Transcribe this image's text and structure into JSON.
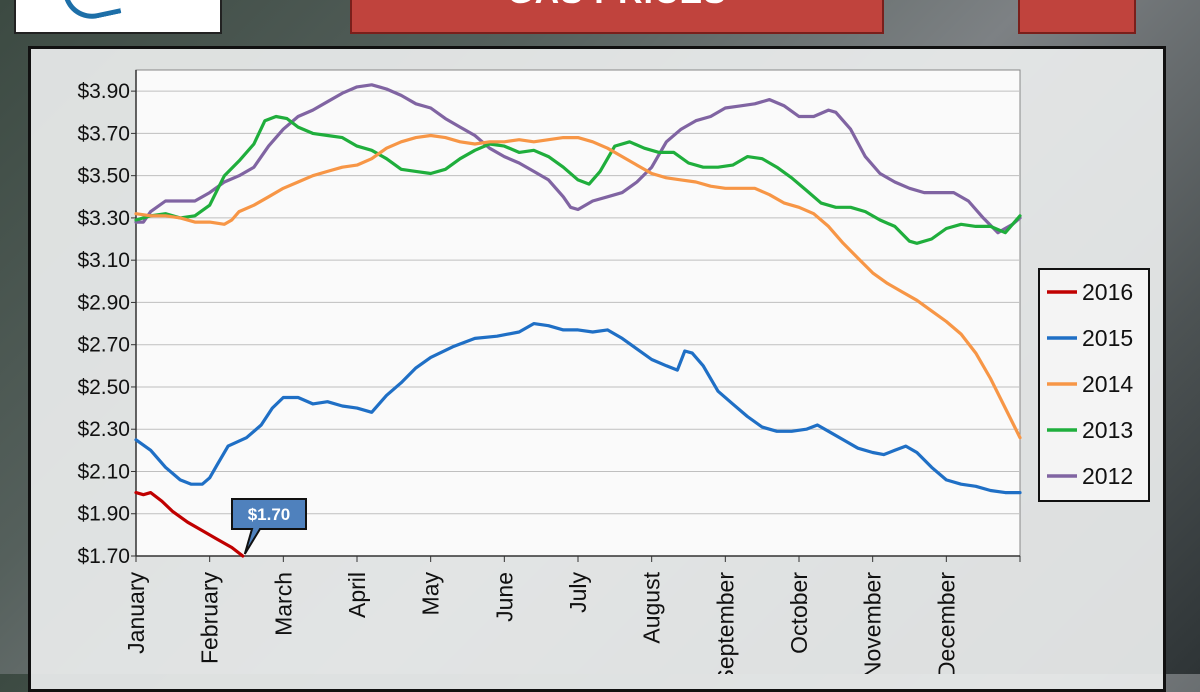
{
  "header": {
    "title": "GAS PRICES",
    "logo": "logo-swoosh",
    "corner_icon": "minus-icon"
  },
  "chart_data": {
    "type": "line",
    "title": "GAS PRICES",
    "xlabel": "",
    "ylabel": "",
    "x": [
      "January",
      "February",
      "March",
      "April",
      "May",
      "June",
      "July",
      "August",
      "September",
      "October",
      "November",
      "December"
    ],
    "x_tick_labels": [
      "January",
      "February",
      "March",
      "April",
      "May",
      "June",
      "July",
      "August",
      "September",
      "October",
      "November",
      "December"
    ],
    "y_tick_labels": [
      "$1.70",
      "$1.90",
      "$2.10",
      "$2.30",
      "$2.50",
      "$2.70",
      "$2.90",
      "$3.10",
      "$3.30",
      "$3.50",
      "$3.70",
      "$3.90"
    ],
    "ylim": [
      1.7,
      4.0
    ],
    "grid": true,
    "legend_position": "right",
    "annotation": {
      "text": "$1.70",
      "series": "2016",
      "x": 1.45,
      "y": 1.7
    },
    "series": [
      {
        "name": "2016",
        "color": "#c00000",
        "points": [
          [
            0,
            2.0
          ],
          [
            0.1,
            1.99
          ],
          [
            0.2,
            2.0
          ],
          [
            0.35,
            1.96
          ],
          [
            0.5,
            1.91
          ],
          [
            0.7,
            1.86
          ],
          [
            0.9,
            1.82
          ],
          [
            1.1,
            1.78
          ],
          [
            1.3,
            1.74
          ],
          [
            1.45,
            1.7
          ]
        ]
      },
      {
        "name": "2015",
        "color": "#1f6fc5",
        "points": [
          [
            0,
            2.25
          ],
          [
            0.2,
            2.2
          ],
          [
            0.4,
            2.12
          ],
          [
            0.6,
            2.06
          ],
          [
            0.75,
            2.04
          ],
          [
            0.9,
            2.04
          ],
          [
            1.0,
            2.07
          ],
          [
            1.1,
            2.13
          ],
          [
            1.25,
            2.22
          ],
          [
            1.5,
            2.26
          ],
          [
            1.7,
            2.32
          ],
          [
            1.85,
            2.4
          ],
          [
            2.0,
            2.45
          ],
          [
            2.2,
            2.45
          ],
          [
            2.4,
            2.42
          ],
          [
            2.6,
            2.43
          ],
          [
            2.8,
            2.41
          ],
          [
            3.0,
            2.4
          ],
          [
            3.2,
            2.38
          ],
          [
            3.4,
            2.46
          ],
          [
            3.6,
            2.52
          ],
          [
            3.8,
            2.59
          ],
          [
            4.0,
            2.64
          ],
          [
            4.3,
            2.69
          ],
          [
            4.6,
            2.73
          ],
          [
            4.9,
            2.74
          ],
          [
            5.2,
            2.76
          ],
          [
            5.4,
            2.8
          ],
          [
            5.6,
            2.79
          ],
          [
            5.8,
            2.77
          ],
          [
            6.0,
            2.77
          ],
          [
            6.2,
            2.76
          ],
          [
            6.4,
            2.77
          ],
          [
            6.6,
            2.73
          ],
          [
            6.8,
            2.68
          ],
          [
            7.0,
            2.63
          ],
          [
            7.2,
            2.6
          ],
          [
            7.35,
            2.58
          ],
          [
            7.45,
            2.67
          ],
          [
            7.55,
            2.66
          ],
          [
            7.7,
            2.6
          ],
          [
            7.9,
            2.48
          ],
          [
            8.1,
            2.42
          ],
          [
            8.3,
            2.36
          ],
          [
            8.5,
            2.31
          ],
          [
            8.7,
            2.29
          ],
          [
            8.9,
            2.29
          ],
          [
            9.1,
            2.3
          ],
          [
            9.25,
            2.32
          ],
          [
            9.4,
            2.29
          ],
          [
            9.6,
            2.25
          ],
          [
            9.8,
            2.21
          ],
          [
            10.0,
            2.19
          ],
          [
            10.15,
            2.18
          ],
          [
            10.3,
            2.2
          ],
          [
            10.45,
            2.22
          ],
          [
            10.6,
            2.19
          ],
          [
            10.8,
            2.12
          ],
          [
            11.0,
            2.06
          ],
          [
            11.2,
            2.04
          ],
          [
            11.4,
            2.03
          ],
          [
            11.6,
            2.01
          ],
          [
            11.8,
            2.0
          ],
          [
            12.0,
            2.0
          ]
        ]
      },
      {
        "name": "2014",
        "color": "#f79646",
        "points": [
          [
            0,
            3.32
          ],
          [
            0.2,
            3.31
          ],
          [
            0.4,
            3.31
          ],
          [
            0.6,
            3.3
          ],
          [
            0.8,
            3.28
          ],
          [
            1.0,
            3.28
          ],
          [
            1.2,
            3.27
          ],
          [
            1.3,
            3.29
          ],
          [
            1.4,
            3.33
          ],
          [
            1.6,
            3.36
          ],
          [
            1.8,
            3.4
          ],
          [
            2.0,
            3.44
          ],
          [
            2.2,
            3.47
          ],
          [
            2.4,
            3.5
          ],
          [
            2.6,
            3.52
          ],
          [
            2.8,
            3.54
          ],
          [
            3.0,
            3.55
          ],
          [
            3.2,
            3.58
          ],
          [
            3.4,
            3.63
          ],
          [
            3.6,
            3.66
          ],
          [
            3.8,
            3.68
          ],
          [
            4.0,
            3.69
          ],
          [
            4.2,
            3.68
          ],
          [
            4.4,
            3.66
          ],
          [
            4.6,
            3.65
          ],
          [
            4.8,
            3.66
          ],
          [
            5.0,
            3.66
          ],
          [
            5.2,
            3.67
          ],
          [
            5.4,
            3.66
          ],
          [
            5.6,
            3.67
          ],
          [
            5.8,
            3.68
          ],
          [
            6.0,
            3.68
          ],
          [
            6.2,
            3.66
          ],
          [
            6.4,
            3.63
          ],
          [
            6.6,
            3.59
          ],
          [
            6.8,
            3.55
          ],
          [
            7.0,
            3.51
          ],
          [
            7.2,
            3.49
          ],
          [
            7.4,
            3.48
          ],
          [
            7.6,
            3.47
          ],
          [
            7.8,
            3.45
          ],
          [
            8.0,
            3.44
          ],
          [
            8.2,
            3.44
          ],
          [
            8.4,
            3.44
          ],
          [
            8.6,
            3.41
          ],
          [
            8.8,
            3.37
          ],
          [
            9.0,
            3.35
          ],
          [
            9.2,
            3.32
          ],
          [
            9.4,
            3.26
          ],
          [
            9.6,
            3.18
          ],
          [
            9.8,
            3.11
          ],
          [
            10.0,
            3.04
          ],
          [
            10.2,
            2.99
          ],
          [
            10.4,
            2.95
          ],
          [
            10.6,
            2.91
          ],
          [
            10.8,
            2.86
          ],
          [
            11.0,
            2.81
          ],
          [
            11.2,
            2.75
          ],
          [
            11.4,
            2.66
          ],
          [
            11.6,
            2.54
          ],
          [
            11.8,
            2.4
          ],
          [
            12.0,
            2.26
          ]
        ]
      },
      {
        "name": "2013",
        "color": "#1fae3c",
        "points": [
          [
            0,
            3.29
          ],
          [
            0.2,
            3.31
          ],
          [
            0.4,
            3.32
          ],
          [
            0.6,
            3.3
          ],
          [
            0.8,
            3.31
          ],
          [
            1.0,
            3.36
          ],
          [
            1.1,
            3.43
          ],
          [
            1.2,
            3.5
          ],
          [
            1.4,
            3.57
          ],
          [
            1.6,
            3.65
          ],
          [
            1.75,
            3.76
          ],
          [
            1.9,
            3.78
          ],
          [
            2.05,
            3.77
          ],
          [
            2.2,
            3.73
          ],
          [
            2.4,
            3.7
          ],
          [
            2.6,
            3.69
          ],
          [
            2.8,
            3.68
          ],
          [
            3.0,
            3.64
          ],
          [
            3.2,
            3.62
          ],
          [
            3.4,
            3.58
          ],
          [
            3.6,
            3.53
          ],
          [
            3.8,
            3.52
          ],
          [
            4.0,
            3.51
          ],
          [
            4.2,
            3.53
          ],
          [
            4.4,
            3.58
          ],
          [
            4.6,
            3.62
          ],
          [
            4.8,
            3.65
          ],
          [
            5.0,
            3.64
          ],
          [
            5.2,
            3.61
          ],
          [
            5.4,
            3.62
          ],
          [
            5.6,
            3.59
          ],
          [
            5.8,
            3.54
          ],
          [
            6.0,
            3.48
          ],
          [
            6.15,
            3.46
          ],
          [
            6.3,
            3.52
          ],
          [
            6.5,
            3.64
          ],
          [
            6.7,
            3.66
          ],
          [
            6.9,
            3.63
          ],
          [
            7.1,
            3.61
          ],
          [
            7.3,
            3.61
          ],
          [
            7.5,
            3.56
          ],
          [
            7.7,
            3.54
          ],
          [
            7.9,
            3.54
          ],
          [
            8.1,
            3.55
          ],
          [
            8.3,
            3.59
          ],
          [
            8.5,
            3.58
          ],
          [
            8.7,
            3.54
          ],
          [
            8.9,
            3.49
          ],
          [
            9.1,
            3.43
          ],
          [
            9.3,
            3.37
          ],
          [
            9.5,
            3.35
          ],
          [
            9.7,
            3.35
          ],
          [
            9.9,
            3.33
          ],
          [
            10.1,
            3.29
          ],
          [
            10.3,
            3.26
          ],
          [
            10.5,
            3.19
          ],
          [
            10.6,
            3.18
          ],
          [
            10.8,
            3.2
          ],
          [
            11.0,
            3.25
          ],
          [
            11.2,
            3.27
          ],
          [
            11.4,
            3.26
          ],
          [
            11.6,
            3.26
          ],
          [
            11.8,
            3.23
          ],
          [
            12.0,
            3.31
          ]
        ]
      },
      {
        "name": "2012",
        "color": "#8064a2",
        "points": [
          [
            0,
            3.28
          ],
          [
            0.1,
            3.28
          ],
          [
            0.2,
            3.33
          ],
          [
            0.4,
            3.38
          ],
          [
            0.6,
            3.38
          ],
          [
            0.8,
            3.38
          ],
          [
            1.0,
            3.42
          ],
          [
            1.2,
            3.47
          ],
          [
            1.4,
            3.5
          ],
          [
            1.6,
            3.54
          ],
          [
            1.8,
            3.64
          ],
          [
            2.0,
            3.72
          ],
          [
            2.2,
            3.78
          ],
          [
            2.4,
            3.81
          ],
          [
            2.6,
            3.85
          ],
          [
            2.8,
            3.89
          ],
          [
            3.0,
            3.92
          ],
          [
            3.2,
            3.93
          ],
          [
            3.4,
            3.91
          ],
          [
            3.6,
            3.88
          ],
          [
            3.8,
            3.84
          ],
          [
            4.0,
            3.82
          ],
          [
            4.2,
            3.77
          ],
          [
            4.4,
            3.73
          ],
          [
            4.6,
            3.69
          ],
          [
            4.8,
            3.63
          ],
          [
            5.0,
            3.59
          ],
          [
            5.2,
            3.56
          ],
          [
            5.4,
            3.52
          ],
          [
            5.6,
            3.48
          ],
          [
            5.8,
            3.4
          ],
          [
            5.9,
            3.35
          ],
          [
            6.0,
            3.34
          ],
          [
            6.2,
            3.38
          ],
          [
            6.4,
            3.4
          ],
          [
            6.6,
            3.42
          ],
          [
            6.8,
            3.47
          ],
          [
            7.0,
            3.54
          ],
          [
            7.2,
            3.66
          ],
          [
            7.4,
            3.72
          ],
          [
            7.6,
            3.76
          ],
          [
            7.8,
            3.78
          ],
          [
            8.0,
            3.82
          ],
          [
            8.2,
            3.83
          ],
          [
            8.4,
            3.84
          ],
          [
            8.6,
            3.86
          ],
          [
            8.8,
            3.83
          ],
          [
            9.0,
            3.78
          ],
          [
            9.2,
            3.78
          ],
          [
            9.4,
            3.81
          ],
          [
            9.5,
            3.8
          ],
          [
            9.7,
            3.72
          ],
          [
            9.9,
            3.59
          ],
          [
            10.1,
            3.51
          ],
          [
            10.3,
            3.47
          ],
          [
            10.5,
            3.44
          ],
          [
            10.7,
            3.42
          ],
          [
            10.9,
            3.42
          ],
          [
            11.1,
            3.42
          ],
          [
            11.3,
            3.38
          ],
          [
            11.5,
            3.3
          ],
          [
            11.7,
            3.23
          ],
          [
            11.9,
            3.27
          ],
          [
            12.0,
            3.3
          ]
        ]
      }
    ]
  }
}
